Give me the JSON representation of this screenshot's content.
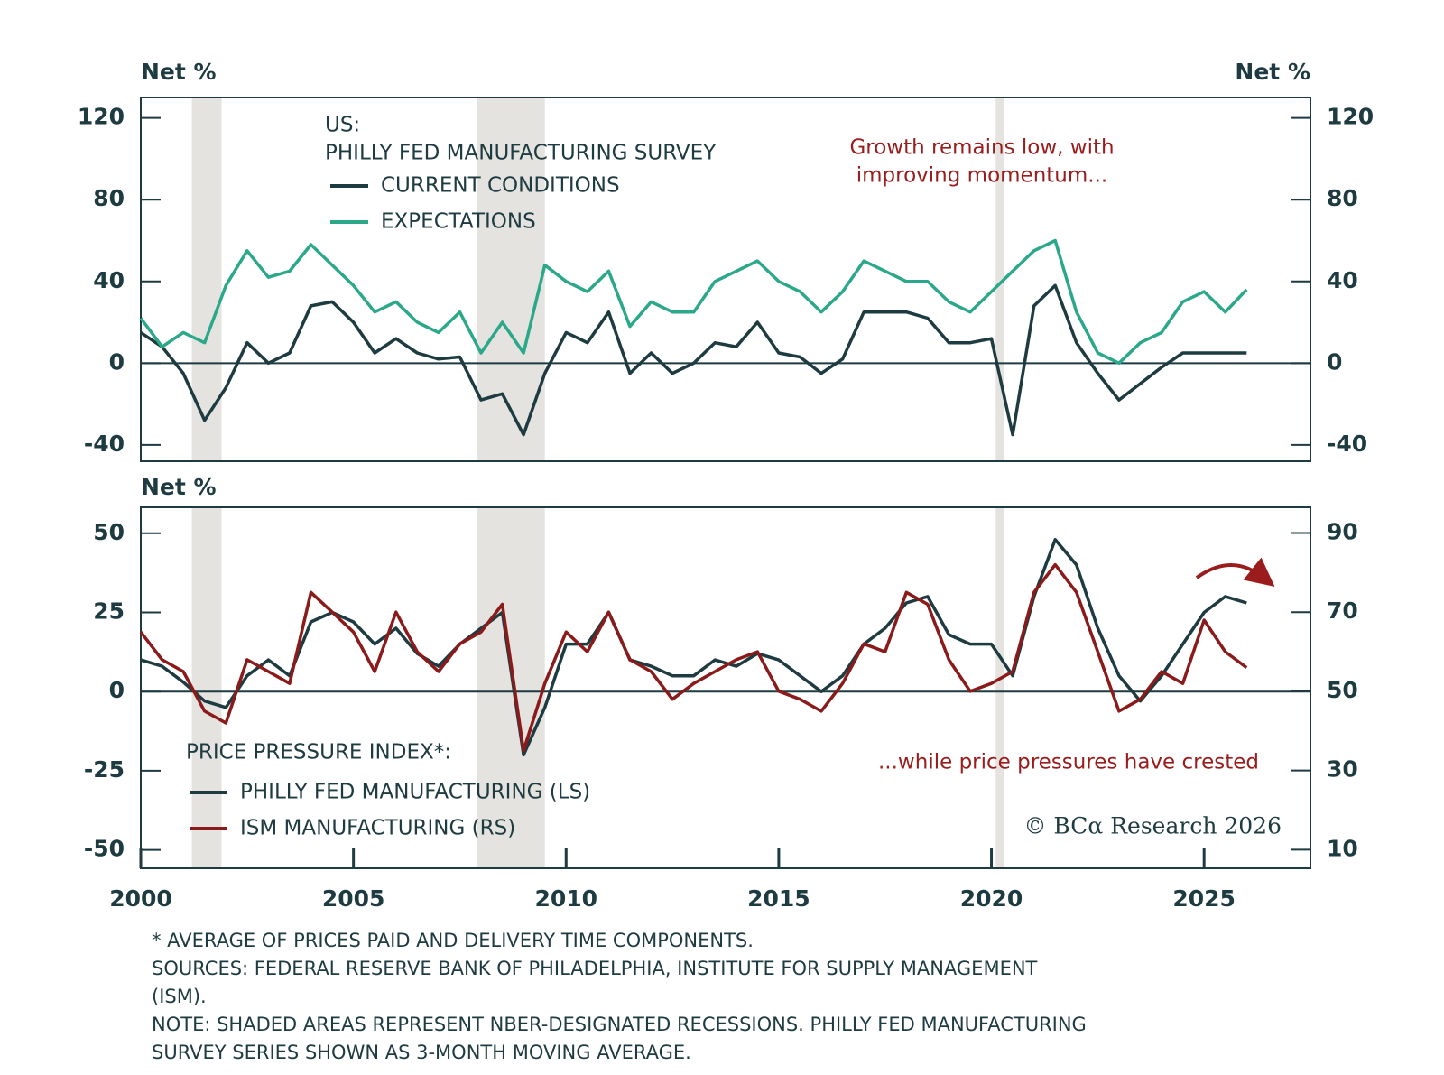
{
  "chart_data": [
    {
      "type": "line",
      "y_label": "Net %",
      "y2_label": "Net %",
      "legend_title": [
        "US:",
        "PHILLY FED MANUFACTURING SURVEY"
      ],
      "annotation": [
        "Growth remains low, with",
        "improving momentum..."
      ],
      "recessions": [
        [
          2001.2,
          2001.9
        ],
        [
          2007.9,
          2009.5
        ],
        [
          2020.1,
          2020.3
        ]
      ],
      "xlim": [
        2000,
        2027.5
      ],
      "ylim": [
        -48,
        130
      ],
      "yticks": [
        -40,
        0,
        40,
        80,
        120
      ],
      "y2lim": [
        -48,
        130
      ],
      "y2ticks": [
        -40,
        0,
        40,
        80,
        120
      ],
      "x": [
        2000,
        2000.5,
        2001,
        2001.5,
        2002,
        2002.5,
        2003,
        2003.5,
        2004,
        2004.5,
        2005,
        2005.5,
        2006,
        2006.5,
        2007,
        2007.5,
        2008,
        2008.5,
        2009,
        2009.5,
        2010,
        2010.5,
        2011,
        2011.5,
        2012,
        2012.5,
        2013,
        2013.5,
        2014,
        2014.5,
        2015,
        2015.5,
        2016,
        2016.5,
        2017,
        2017.5,
        2018,
        2018.5,
        2019,
        2019.5,
        2020,
        2020.5,
        2021,
        2021.5,
        2022,
        2022.5,
        2023,
        2023.5,
        2024,
        2024.5,
        2025,
        2025.5,
        2026
      ],
      "series": [
        {
          "name": "CURRENT CONDITIONS",
          "color": "#1d3b40",
          "values": [
            15,
            8,
            -5,
            -28,
            -12,
            10,
            0,
            5,
            28,
            30,
            20,
            5,
            12,
            5,
            2,
            3,
            -18,
            -15,
            -35,
            -5,
            15,
            10,
            25,
            -5,
            5,
            -5,
            0,
            10,
            8,
            20,
            5,
            3,
            -5,
            2,
            25,
            25,
            25,
            22,
            10,
            10,
            12,
            -35,
            28,
            38,
            10,
            -5,
            -18,
            -10,
            -2,
            5,
            5,
            5,
            5
          ]
        },
        {
          "name": "EXPECTATIONS",
          "color": "#2aa889",
          "values": [
            22,
            8,
            15,
            10,
            38,
            55,
            42,
            45,
            58,
            48,
            38,
            25,
            30,
            20,
            15,
            25,
            5,
            20,
            5,
            48,
            40,
            35,
            45,
            18,
            30,
            25,
            25,
            40,
            45,
            50,
            40,
            35,
            25,
            35,
            50,
            45,
            40,
            40,
            30,
            25,
            35,
            45,
            55,
            60,
            25,
            5,
            0,
            10,
            15,
            30,
            35,
            25,
            36
          ]
        }
      ]
    },
    {
      "type": "line",
      "y_label": "Net %",
      "legend_title": [
        "PRICE PRESSURE INDEX*:"
      ],
      "annotation": [
        "...while price pressures have crested"
      ],
      "copyright": "© BCα Research 2026",
      "recessions": [
        [
          2001.2,
          2001.9
        ],
        [
          2007.9,
          2009.5
        ],
        [
          2020.1,
          2020.3
        ]
      ],
      "xlim": [
        2000,
        2027.5
      ],
      "xticks": [
        2000,
        2005,
        2010,
        2015,
        2020,
        2025
      ],
      "ylim": [
        -55.8,
        58.2
      ],
      "yticks": [
        -50,
        -25,
        0,
        25,
        50
      ],
      "y2lim": [
        5.3,
        96.5
      ],
      "y2ticks": [
        10,
        30,
        50,
        70,
        90
      ],
      "x": [
        2000,
        2000.5,
        2001,
        2001.5,
        2002,
        2002.5,
        2003,
        2003.5,
        2004,
        2004.5,
        2005,
        2005.5,
        2006,
        2006.5,
        2007,
        2007.5,
        2008,
        2008.5,
        2009,
        2009.5,
        2010,
        2010.5,
        2011,
        2011.5,
        2012,
        2012.5,
        2013,
        2013.5,
        2014,
        2014.5,
        2015,
        2015.5,
        2016,
        2016.5,
        2017,
        2017.5,
        2018,
        2018.5,
        2019,
        2019.5,
        2020,
        2020.5,
        2021,
        2021.5,
        2022,
        2022.5,
        2023,
        2023.5,
        2024,
        2024.5,
        2025,
        2025.5,
        2026
      ],
      "series": [
        {
          "name": "PHILLY FED MANUFACTURING (LS)",
          "color": "#1d3b40",
          "values": [
            10,
            8,
            3,
            -3,
            -5,
            5,
            10,
            5,
            22,
            25,
            22,
            15,
            20,
            12,
            8,
            15,
            20,
            25,
            -20,
            -5,
            15,
            15,
            25,
            10,
            8,
            5,
            5,
            10,
            8,
            12,
            10,
            5,
            0,
            5,
            15,
            20,
            28,
            30,
            18,
            15,
            15,
            5,
            30,
            48,
            40,
            20,
            5,
            -3,
            5,
            15,
            25,
            30,
            28
          ]
        },
        {
          "name": "ISM MANUFACTURING (RS)",
          "color": "#8b1a1a",
          "axis": "y2",
          "values": [
            65,
            58,
            55,
            45,
            42,
            58,
            55,
            52,
            75,
            70,
            65,
            55,
            70,
            60,
            55,
            62,
            65,
            72,
            35,
            52,
            65,
            60,
            70,
            58,
            55,
            48,
            52,
            55,
            58,
            60,
            50,
            48,
            45,
            52,
            62,
            60,
            75,
            72,
            58,
            50,
            52,
            55,
            75,
            82,
            75,
            60,
            45,
            48,
            55,
            52,
            68,
            60,
            56
          ]
        }
      ]
    }
  ],
  "notes": [
    "* AVERAGE OF PRICES PAID AND DELIVERY TIME COMPONENTS.",
    "SOURCES: FEDERAL RESERVE BANK OF PHILADELPHIA, INSTITUTE FOR SUPPLY MANAGEMENT",
    "(ISM).",
    "NOTE: SHADED AREAS REPRESENT NBER-DESIGNATED RECESSIONS. PHILLY FED MANUFACTURING",
    "SURVEY SERIES SHOWN AS 3-MONTH MOVING AVERAGE."
  ]
}
